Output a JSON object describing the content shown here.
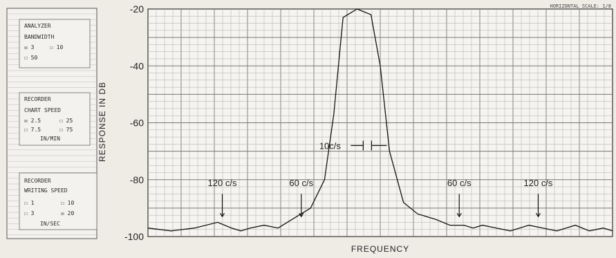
{
  "panel": {
    "analyzer": {
      "title": "ANALYZER",
      "subtitle": "BANDWIDTH",
      "options": [
        {
          "label": "3",
          "checked": true
        },
        {
          "label": "10",
          "checked": false
        },
        {
          "label": "50",
          "checked": false
        }
      ]
    },
    "chart_speed": {
      "title": "RECORDER",
      "subtitle": "CHART SPEED",
      "options": [
        {
          "label": "2.5",
          "checked": true
        },
        {
          "label": "25",
          "checked": false
        },
        {
          "label": "7.5",
          "checked": false
        },
        {
          "label": "75",
          "checked": false
        }
      ],
      "unit": "IN/MIN"
    },
    "writing_speed": {
      "title": "RECORDER",
      "subtitle": "WRITING SPEED",
      "options": [
        {
          "label": "1",
          "checked": false
        },
        {
          "label": "10",
          "checked": false
        },
        {
          "label": "3",
          "checked": false
        },
        {
          "label": "20",
          "checked": true
        }
      ],
      "unit": "IN/SEC"
    }
  },
  "chart_data": {
    "type": "line",
    "ylabel": "RESPONSE IN DB",
    "xlabel": "FREQUENCY",
    "ylim": [
      -100,
      -20
    ],
    "yticks": [
      -20,
      -40,
      -60,
      -80,
      -100
    ],
    "scale_note": "HORIZONTAL SCALE: 1/8",
    "grid": true,
    "x": [
      0,
      5,
      10,
      15,
      18,
      20,
      22,
      25,
      28,
      30,
      32,
      35,
      38,
      40,
      42,
      45,
      48,
      50,
      52,
      55,
      58,
      60,
      62,
      65,
      68,
      70,
      72,
      75,
      78,
      80,
      82,
      85,
      88,
      90,
      92,
      95,
      98,
      100
    ],
    "values": [
      -97,
      -98,
      -97,
      -95,
      -97,
      -98,
      -97,
      -96,
      -97,
      -95,
      -93,
      -90,
      -80,
      -57,
      -23,
      -20,
      -22,
      -40,
      -70,
      -88,
      -92,
      -93,
      -94,
      -96,
      -96,
      -97,
      -96,
      -97,
      -98,
      -97,
      -96,
      -97,
      -98,
      -97,
      -96,
      -98,
      -97,
      -98
    ],
    "annotations": [
      {
        "text": "120 c/s",
        "x": 16
      },
      {
        "text": "60 c/s",
        "x": 33
      },
      {
        "text": "60 c/s",
        "x": 67
      },
      {
        "text": "120 c/s",
        "x": 84
      },
      {
        "text": "10c/s",
        "x": 38
      }
    ]
  }
}
